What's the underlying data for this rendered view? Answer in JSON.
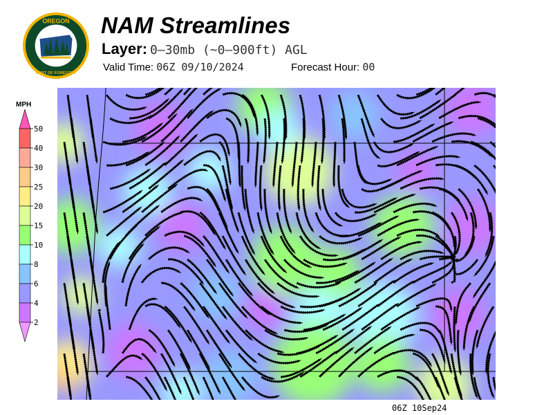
{
  "header": {
    "title": "NAM Streamlines",
    "layer_label": "Layer:",
    "layer_value": "0–30mb (~0–900ft) AGL",
    "valid_label": "Valid Time:",
    "valid_value": "06Z 09/10/2024",
    "forecast_label": "Forecast Hour:",
    "forecast_value": "00"
  },
  "logo": {
    "text_top": "OREGON",
    "text_bottom": "DEPARTMENT OF FORESTRY",
    "ring_color": "#f0b400",
    "field_color": "#0e4a2a"
  },
  "legend": {
    "unit": "MPH",
    "ticks": [
      "50",
      "40",
      "30",
      "25",
      "20",
      "15",
      "10",
      "8",
      "6",
      "4",
      "2"
    ],
    "colors": {
      "above": "#ff55b4",
      "b50_40": "#ff6464",
      "b40_30": "#ffaa99",
      "b30_25": "#ffcc88",
      "b25_20": "#ffee88",
      "b20_15": "#ddff99",
      "b15_10": "#99ff77",
      "b10_8": "#aaffff",
      "b8_6": "#88c4ff",
      "b6_4": "#9999ff",
      "b4_2": "#cc77ff",
      "below": "#ee99ff"
    }
  },
  "map": {
    "field": "wind speed (mph) with streamlines",
    "timestamp": "06Z 10Sep24"
  }
}
